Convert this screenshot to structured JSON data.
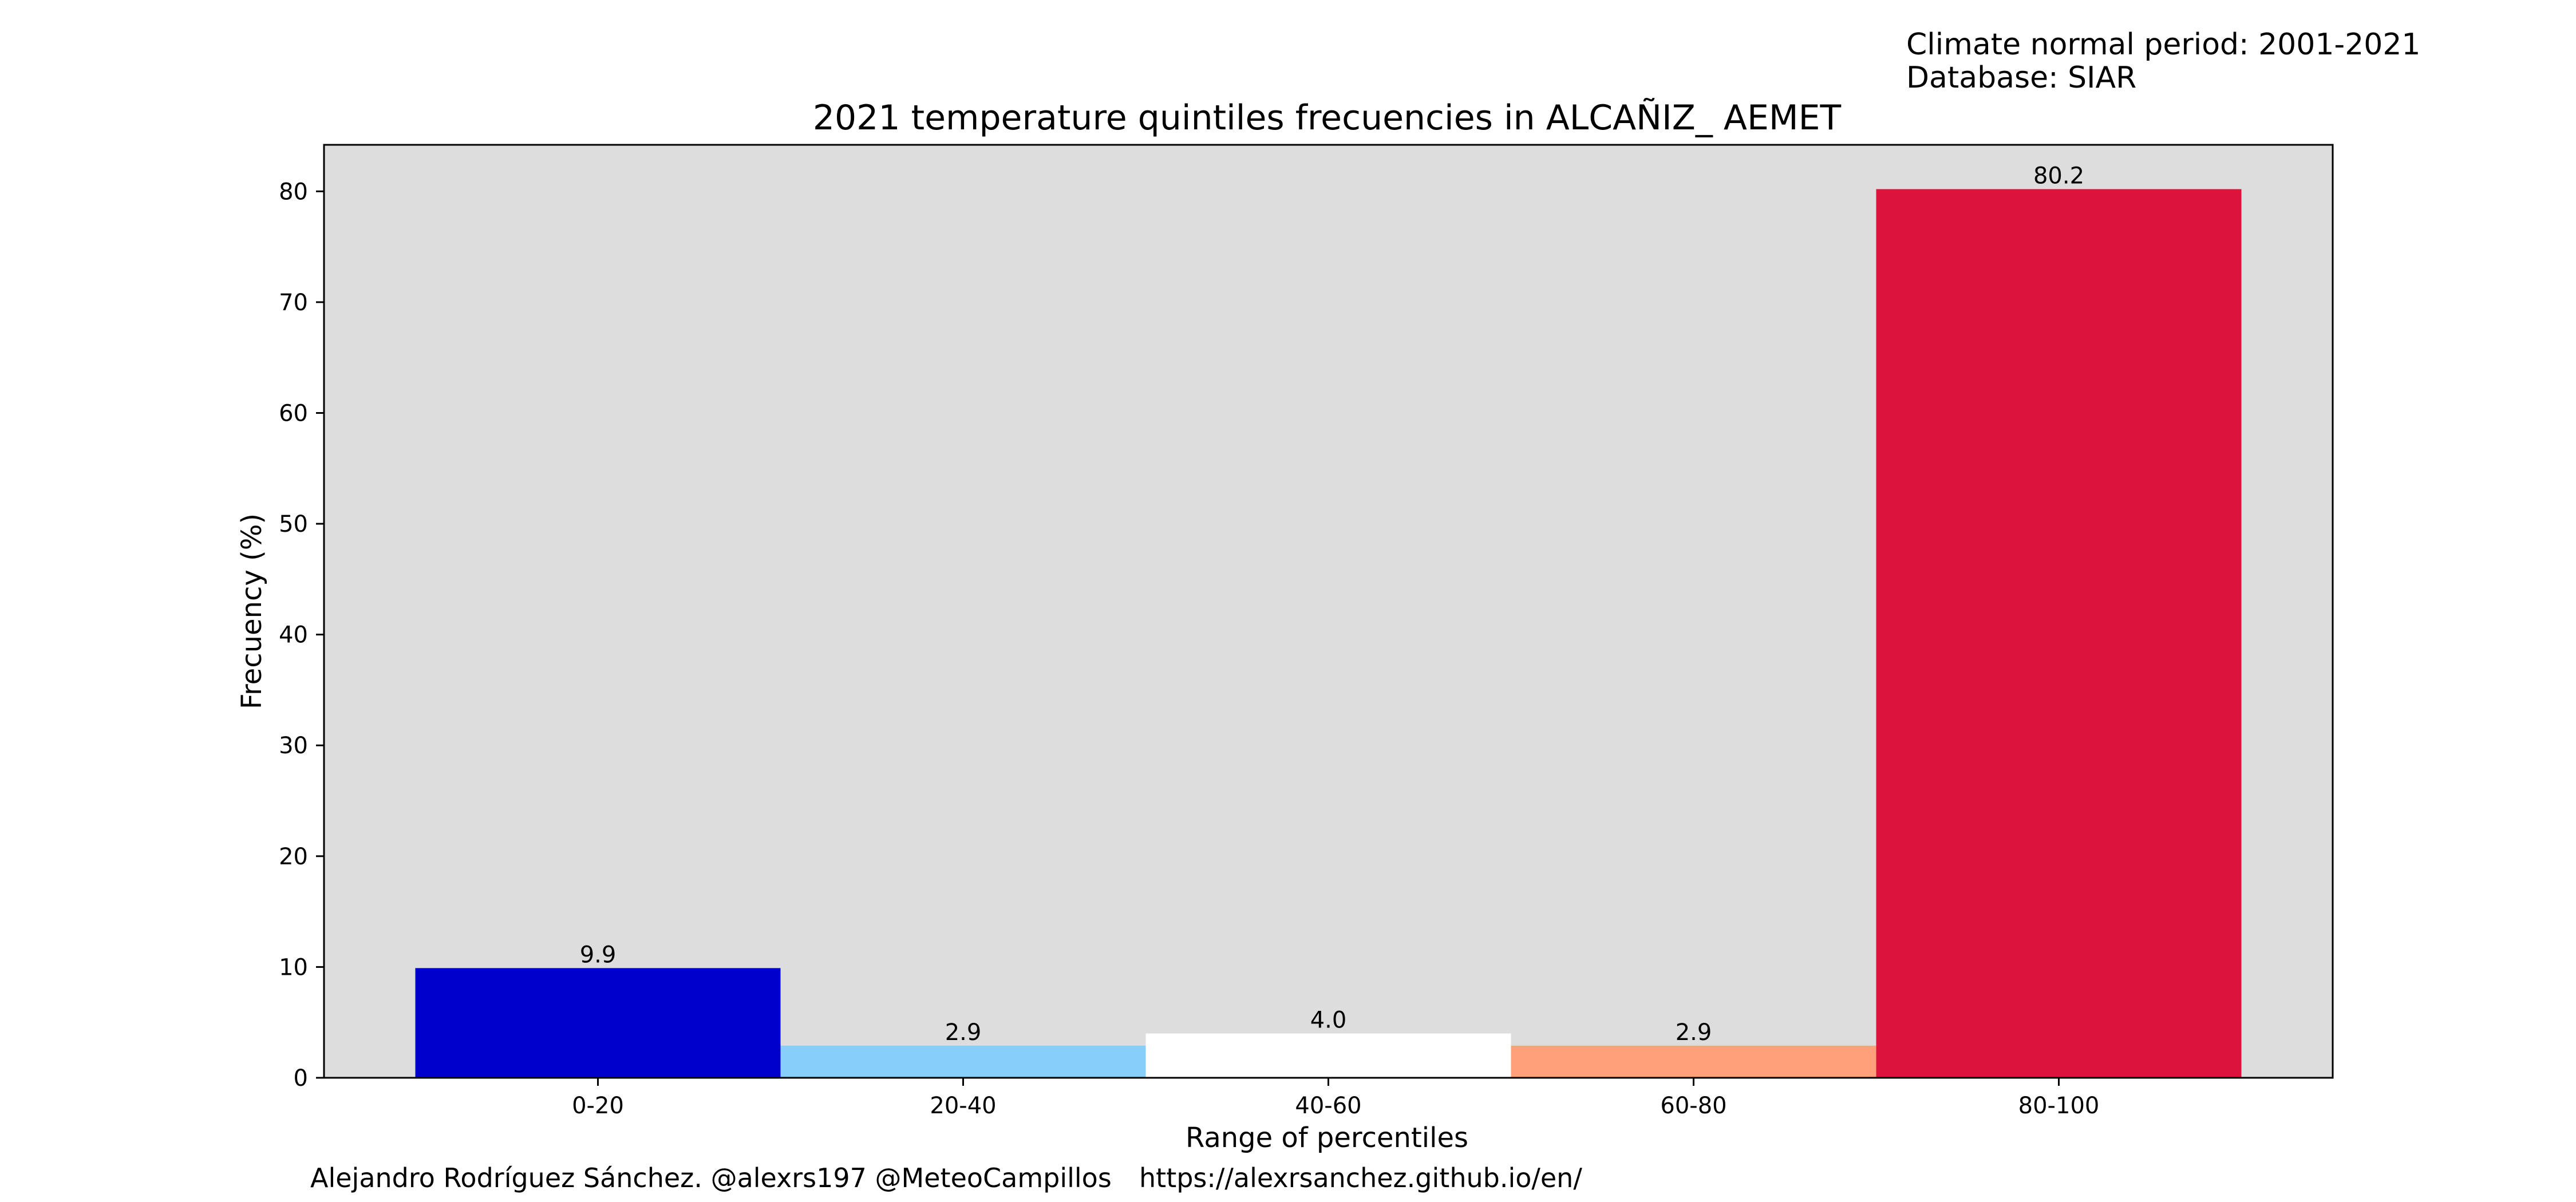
{
  "chart_data": {
    "type": "bar",
    "title": "2021 temperature quintiles frecuencies in ALCAÑIZ_ AEMET",
    "xlabel": "Range of percentiles",
    "ylabel": "Frecuency (%)",
    "categories": [
      "0-20",
      "20-40",
      "40-60",
      "60-80",
      "80-100"
    ],
    "values": [
      9.9,
      2.9,
      4.0,
      2.9,
      80.2
    ],
    "value_labels": [
      "9.9",
      "2.9",
      "4.0",
      "2.9",
      "80.2"
    ],
    "bar_colors": [
      "#0000cd",
      "#87cefa",
      "#ffffff",
      "#ffa07a",
      "#dc143c"
    ],
    "ylim": [
      0,
      84.2
    ],
    "yticks": [
      0,
      10,
      20,
      30,
      40,
      50,
      60,
      70,
      80
    ],
    "grid": false,
    "legend": "none",
    "plot_background": "#dddddd"
  },
  "notes": {
    "line1": "Climate normal period: 2001-2021",
    "line2": "Database: SIAR"
  },
  "credits": {
    "author": "Alejandro Rodríguez Sánchez. @alexrs197 @MeteoCampillos",
    "url": "https://alexrsanchez.github.io/en/"
  }
}
